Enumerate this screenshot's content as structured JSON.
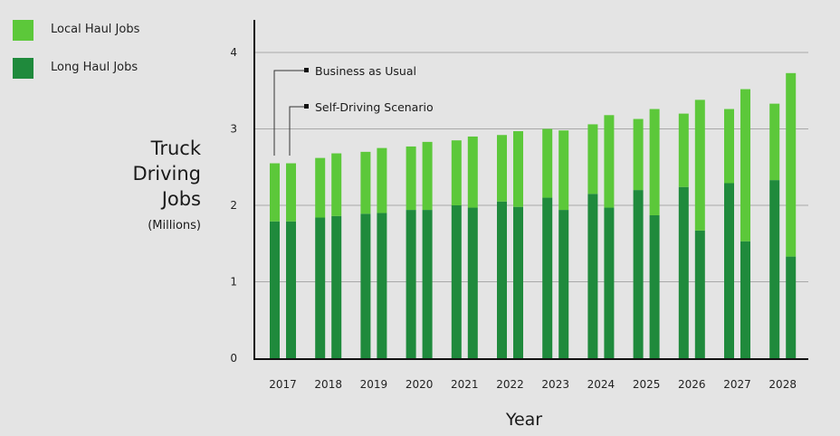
{
  "chart_data": {
    "type": "bar",
    "stacked": true,
    "grouped": true,
    "title": "",
    "ylabel_lines": [
      "Truck",
      "Driving",
      "Jobs"
    ],
    "ylabel_unit": "(Millions)",
    "xlabel": "Year",
    "ylim": [
      0,
      4.4
    ],
    "yticks": [
      0,
      1,
      2,
      3,
      4
    ],
    "grid": true,
    "legend_position": "top-left",
    "categories": [
      "2017",
      "2018",
      "2019",
      "2020",
      "2021",
      "2022",
      "2023",
      "2024",
      "2025",
      "2026",
      "2027",
      "2028"
    ],
    "stack_series": [
      {
        "name": "Long Haul Jobs",
        "color": "#1f8a3c"
      },
      {
        "name": "Local Haul Jobs",
        "color": "#5cc83a"
      }
    ],
    "groups": [
      {
        "name": "Business as Usual",
        "long_haul": [
          1.79,
          1.84,
          1.89,
          1.94,
          2.0,
          2.05,
          2.1,
          2.15,
          2.2,
          2.24,
          2.29,
          2.33
        ],
        "total": [
          2.55,
          2.62,
          2.7,
          2.77,
          2.85,
          2.92,
          3.0,
          3.06,
          3.13,
          3.2,
          3.26,
          3.33
        ]
      },
      {
        "name": "Self-Driving Scenario",
        "long_haul": [
          1.79,
          1.86,
          1.9,
          1.94,
          1.97,
          1.98,
          1.94,
          1.97,
          1.87,
          1.67,
          1.53,
          1.33
        ],
        "total": [
          2.55,
          2.68,
          2.75,
          2.83,
          2.9,
          2.97,
          2.98,
          3.18,
          3.26,
          3.38,
          3.52,
          3.73
        ]
      }
    ],
    "annotations": [
      {
        "text": "Business as Usual",
        "points_to": "Business as Usual"
      },
      {
        "text": "Self-Driving Scenario",
        "points_to": "Self-Driving Scenario"
      }
    ]
  },
  "legend": [
    {
      "label": "Local Haul Jobs",
      "color": "#5cc83a"
    },
    {
      "label": "Long Haul Jobs",
      "color": "#1f8a3c"
    }
  ]
}
